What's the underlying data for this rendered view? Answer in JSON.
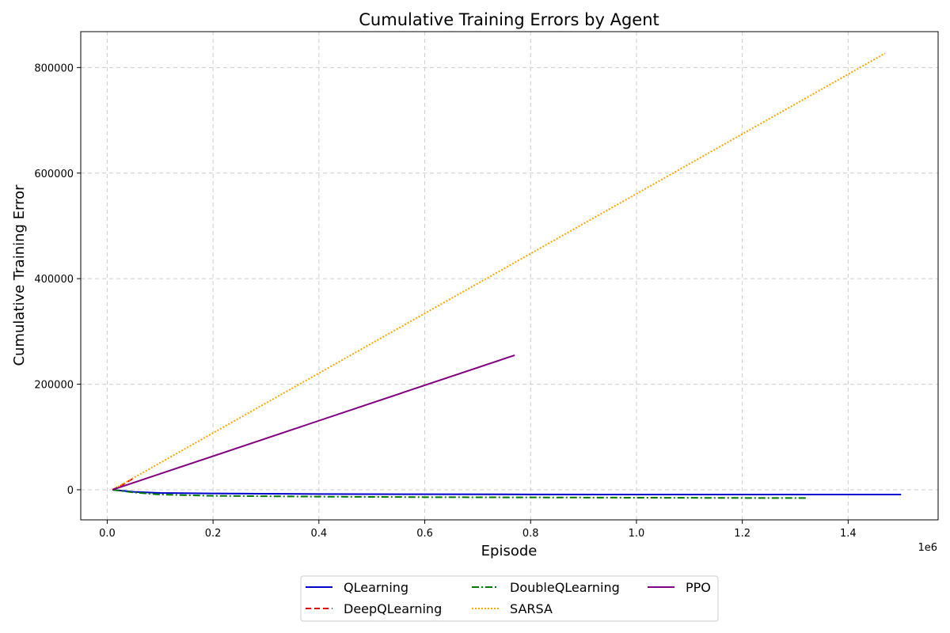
{
  "chart_data": {
    "type": "line",
    "title": "Cumulative Training Errors by Agent",
    "xlabel": "Episode",
    "ylabel": "Cumulative Training Error",
    "x_offset_label": "1e6",
    "x_scale": 1000000,
    "xlim": [
      -0.05,
      1.57
    ],
    "ylim": [
      -57000,
      868000
    ],
    "x_ticks": [
      0.0,
      0.2,
      0.4,
      0.6,
      0.8,
      1.0,
      1.2,
      1.4
    ],
    "x_tick_labels": [
      "0.0",
      "0.2",
      "0.4",
      "0.6",
      "0.8",
      "1.0",
      "1.2",
      "1.4"
    ],
    "y_ticks": [
      0,
      200000,
      400000,
      600000,
      800000
    ],
    "y_tick_labels": [
      "0",
      "200000",
      "400000",
      "600000",
      "800000"
    ],
    "grid": true,
    "legend_position": "bottom-center",
    "series": [
      {
        "name": "QLearning",
        "color": "#0000cc",
        "style": "solid",
        "x": [
          0.01,
          0.05,
          0.1,
          0.2,
          0.4,
          0.6,
          0.8,
          1.0,
          1.2,
          1.4,
          1.5
        ],
        "y": [
          0,
          -4000,
          -6000,
          -7000,
          -8000,
          -8500,
          -8800,
          -9000,
          -9000,
          -9000,
          -9000
        ]
      },
      {
        "name": "DeepQLearning",
        "color": "#dd0000",
        "style": "dashed",
        "x": [
          0.01,
          0.03,
          0.05
        ],
        "y": [
          0,
          10000,
          22000
        ]
      },
      {
        "name": "DoubleQLearning",
        "color": "#007700",
        "style": "dashdot",
        "x": [
          0.01,
          0.05,
          0.1,
          0.2,
          0.4,
          0.6,
          0.8,
          1.0,
          1.2,
          1.32
        ],
        "y": [
          0,
          -5000,
          -9000,
          -11500,
          -13000,
          -14000,
          -14500,
          -15000,
          -15500,
          -15500
        ]
      },
      {
        "name": "SARSA",
        "color": "#ffa500",
        "style": "dotted",
        "x": [
          0.01,
          1.47
        ],
        "y": [
          0,
          827000
        ]
      },
      {
        "name": "PPO",
        "color": "#800080",
        "style": "solid",
        "x": [
          0.01,
          0.77
        ],
        "y": [
          0,
          255000
        ]
      }
    ]
  }
}
